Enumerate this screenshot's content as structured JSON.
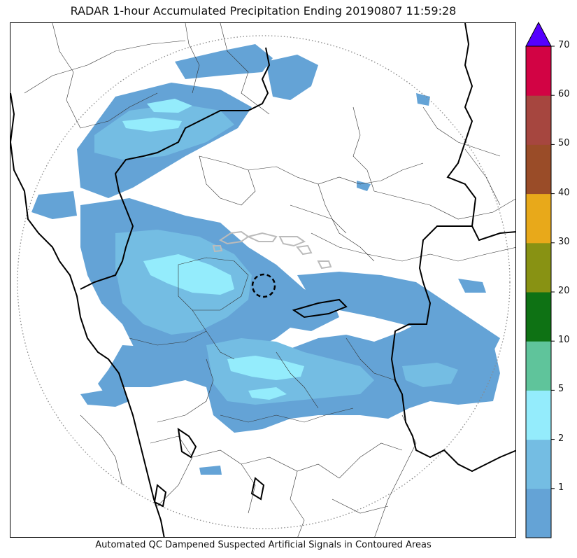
{
  "title": "RADAR 1-hour Accumulated Precipitation Ending 20190807 11:59:28",
  "caption": "Automated QC Dampened Suspected Artificial Signals in Contoured Areas",
  "colorbar": {
    "levels": [
      {
        "label": "",
        "color": "#64a3d6"
      },
      {
        "label": "1",
        "color": "#74bde3"
      },
      {
        "label": "2",
        "color": "#94ecfc"
      },
      {
        "label": "5",
        "color": "#5fc49b"
      },
      {
        "label": "10",
        "color": "#0e7214"
      },
      {
        "label": "20",
        "color": "#889213"
      },
      {
        "label": "30",
        "color": "#e8a91a"
      },
      {
        "label": "40",
        "color": "#9a4c28"
      },
      {
        "label": "50",
        "color": "#a6463f"
      },
      {
        "label": "60",
        "color": "#d20344"
      }
    ],
    "top_label": "70",
    "extend_color": "#5500ff"
  },
  "legend_ticks": [
    "1",
    "2",
    "5",
    "10",
    "20",
    "30",
    "40",
    "50",
    "60",
    "70"
  ]
}
